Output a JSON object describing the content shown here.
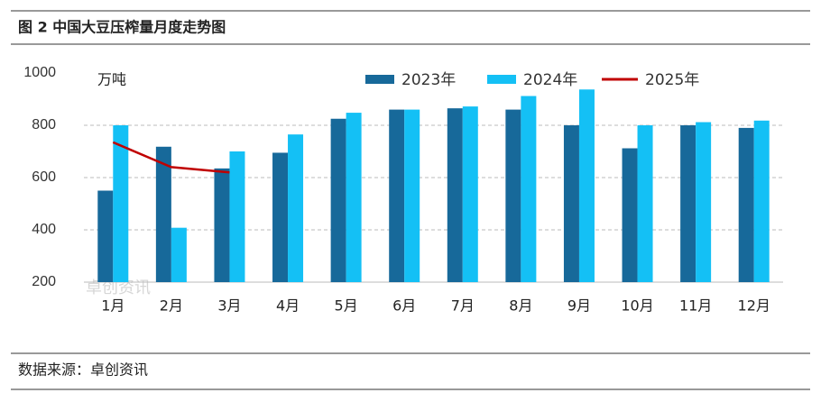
{
  "chart_data": {
    "type": "bar",
    "title": "图 2 中国大豆压榨量月度走势图",
    "unit_label": "万吨",
    "watermark": "卓创资讯",
    "source": "数据来源：卓创资讯",
    "categories": [
      "1月",
      "2月",
      "3月",
      "4月",
      "5月",
      "6月",
      "7月",
      "8月",
      "9月",
      "10月",
      "11月",
      "12月"
    ],
    "series": [
      {
        "name": "2023年",
        "type": "bar",
        "color": "#17699a",
        "values": [
          550,
          718,
          635,
          695,
          825,
          860,
          865,
          860,
          800,
          712,
          800,
          790
        ]
      },
      {
        "name": "2024年",
        "type": "bar",
        "color": "#14c0f5",
        "values": [
          800,
          408,
          700,
          765,
          848,
          860,
          872,
          912,
          937,
          800,
          812,
          818
        ]
      },
      {
        "name": "2025年",
        "type": "line",
        "color": "#c00000",
        "values": [
          735,
          640,
          620,
          null,
          null,
          null,
          null,
          null,
          null,
          null,
          null,
          null
        ]
      }
    ],
    "ylim": [
      200,
      1000
    ],
    "yticks": [
      200,
      400,
      600,
      800,
      1000
    ],
    "grid": true
  }
}
